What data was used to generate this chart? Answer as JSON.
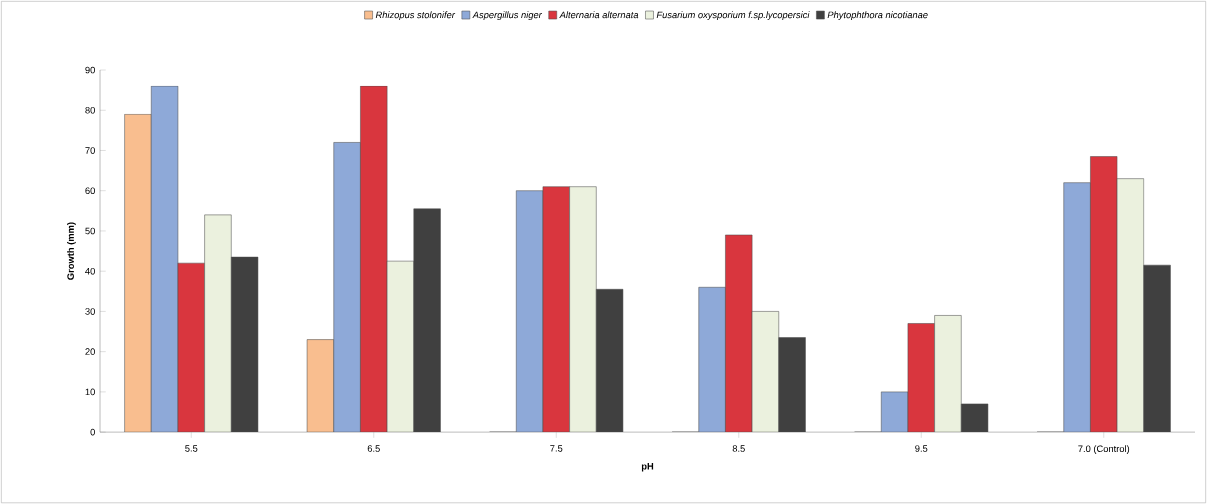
{
  "chart_data": {
    "type": "bar",
    "xlabel": "pH",
    "ylabel": "Growth (mm)",
    "categories": [
      "5.5",
      "6.5",
      "7.5",
      "8.5",
      "9.5",
      "7.0 (Control)"
    ],
    "series": [
      {
        "name": "Rhizopus stolonifer",
        "color": "#f9be8f",
        "values": [
          79,
          23,
          0,
          0,
          0,
          0
        ]
      },
      {
        "name": "Aspergillus niger",
        "color": "#8ea9d8",
        "values": [
          86,
          72,
          60,
          36,
          10,
          62
        ]
      },
      {
        "name": "Alternaria alternata",
        "color": "#d9363e",
        "values": [
          42,
          86,
          61,
          49,
          27,
          68.5
        ]
      },
      {
        "name": "Fusarium oxysporium f.sp.lycopersici",
        "color": "#ebf1de",
        "values": [
          54,
          42.5,
          61,
          30,
          29,
          63
        ]
      },
      {
        "name": "Phytophthora nicotianae",
        "color": "#404040",
        "values": [
          43.5,
          55.5,
          35.5,
          23.5,
          7,
          41.5
        ]
      }
    ],
    "ylim": [
      0,
      90
    ],
    "yticks": [
      0,
      10,
      20,
      30,
      40,
      50,
      60,
      70,
      80,
      90
    ],
    "grid": false,
    "legend": "top"
  }
}
